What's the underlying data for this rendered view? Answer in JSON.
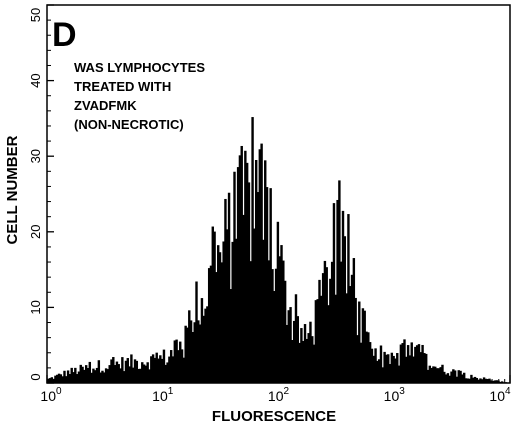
{
  "chart_data": {
    "type": "histogram",
    "panel_label": "D",
    "annotation": [
      "WAS LYMPHOCYTES",
      "TREATED WITH",
      "ZVADFMK",
      "(NON-NECROTIC)"
    ],
    "xlabel": "FLUORESCENCE",
    "ylabel": "CELL NUMBER",
    "x_scale": "log",
    "xlim": [
      1,
      10000
    ],
    "ylim": [
      0,
      50
    ],
    "y_ticks": [
      0,
      10,
      20,
      30,
      40,
      50
    ],
    "x_ticks": [
      {
        "value": 1,
        "base": "10",
        "exp": "0"
      },
      {
        "value": 10,
        "base": "10",
        "exp": "1"
      },
      {
        "value": 100,
        "base": "10",
        "exp": "2"
      },
      {
        "value": 1000,
        "base": "10",
        "exp": "3"
      },
      {
        "value": 10000,
        "base": "10",
        "exp": "4"
      }
    ],
    "bin_count": 256,
    "grid": false,
    "envelope": [
      {
        "x": 1.0,
        "y": 0.5
      },
      {
        "x": 1.5,
        "y": 1.5
      },
      {
        "x": 3.0,
        "y": 2.5
      },
      {
        "x": 6.0,
        "y": 3.0
      },
      {
        "x": 10.0,
        "y": 3.5
      },
      {
        "x": 15.0,
        "y": 5.0
      },
      {
        "x": 20.0,
        "y": 10.0
      },
      {
        "x": 30.0,
        "y": 17.0
      },
      {
        "x": 40.0,
        "y": 22.0
      },
      {
        "x": 55.0,
        "y": 26.0
      },
      {
        "x": 65.0,
        "y": 27.0
      },
      {
        "x": 80.0,
        "y": 24.0
      },
      {
        "x": 100.0,
        "y": 17.0
      },
      {
        "x": 130.0,
        "y": 9.0
      },
      {
        "x": 170.0,
        "y": 6.0
      },
      {
        "x": 220.0,
        "y": 10.0
      },
      {
        "x": 280.0,
        "y": 17.0
      },
      {
        "x": 330.0,
        "y": 19.0
      },
      {
        "x": 400.0,
        "y": 16.0
      },
      {
        "x": 500.0,
        "y": 9.0
      },
      {
        "x": 650.0,
        "y": 4.0
      },
      {
        "x": 900.0,
        "y": 3.0
      },
      {
        "x": 1200.0,
        "y": 4.5
      },
      {
        "x": 1600.0,
        "y": 4.0
      },
      {
        "x": 2500.0,
        "y": 2.0
      },
      {
        "x": 5000.0,
        "y": 0.8
      },
      {
        "x": 10000.0,
        "y": 0.0
      }
    ]
  }
}
